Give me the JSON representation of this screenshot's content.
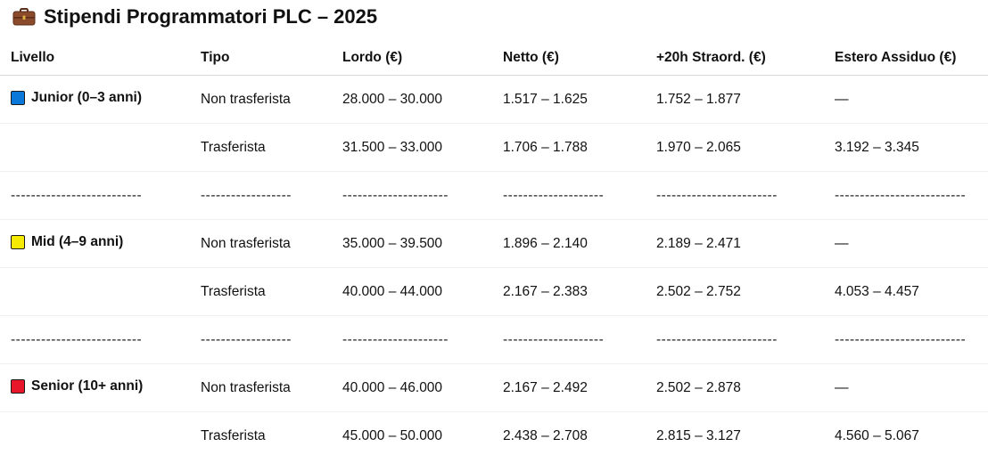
{
  "title": "Stipendi Programmatori PLC – 2025",
  "colors": {
    "junior": "#0a78d8",
    "mid": "#f5ea00",
    "senior": "#e8162b",
    "briefcase": "#8a4a2b"
  },
  "table": {
    "headers": [
      "Livello",
      "Tipo",
      "Lordo (€)",
      "Netto (€)",
      "+20h Straord. (€)",
      "Estero Assiduo (€)"
    ],
    "rows": [
      {
        "level": "Junior (0–3 anni)",
        "tipo": "Non trasferista",
        "lordo": "28.000 – 30.000",
        "netto": "1.517 – 1.625",
        "straord": "1.752 – 1.877",
        "estero": "—"
      },
      {
        "level": "",
        "tipo": "Trasferista",
        "lordo": "31.500 – 33.000",
        "netto": "1.706 – 1.788",
        "straord": "1.970 – 2.065",
        "estero": "3.192 – 3.345"
      },
      {
        "level": "--------------------------",
        "tipo": "------------------",
        "lordo": "---------------------",
        "netto": "--------------------",
        "straord": "------------------------",
        "estero": "--------------------------"
      },
      {
        "level": "Mid (4–9 anni)",
        "tipo": "Non trasferista",
        "lordo": "35.000 – 39.500",
        "netto": "1.896 – 2.140",
        "straord": "2.189 – 2.471",
        "estero": "—"
      },
      {
        "level": "",
        "tipo": "Trasferista",
        "lordo": "40.000 – 44.000",
        "netto": "2.167 – 2.383",
        "straord": "2.502 – 2.752",
        "estero": "4.053 – 4.457"
      },
      {
        "level": "--------------------------",
        "tipo": "------------------",
        "lordo": "---------------------",
        "netto": "--------------------",
        "straord": "------------------------",
        "estero": "--------------------------"
      },
      {
        "level": "Senior (10+ anni)",
        "tipo": "Non trasferista",
        "lordo": "40.000 – 46.000",
        "netto": "2.167 – 2.492",
        "straord": "2.502 – 2.878",
        "estero": "—"
      },
      {
        "level": "",
        "tipo": "Trasferista",
        "lordo": "45.000 – 50.000",
        "netto": "2.438 – 2.708",
        "straord": "2.815 – 3.127",
        "estero": "4.560 – 5.067"
      }
    ]
  }
}
